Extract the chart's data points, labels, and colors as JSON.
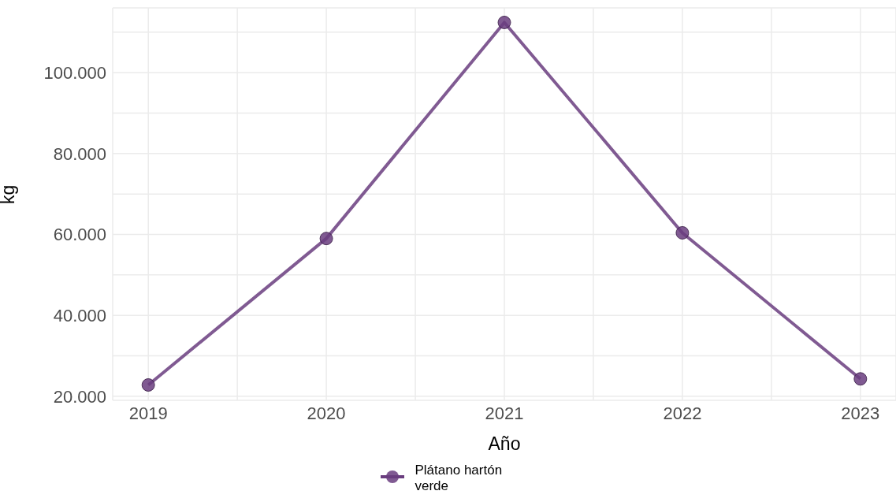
{
  "chart_data": {
    "type": "line",
    "xlabel": "Año",
    "ylabel": "kg",
    "x": [
      2019,
      2020,
      2021,
      2022,
      2023
    ],
    "series": [
      {
        "name": "Plátano hartón verde",
        "color": "#6a3d7f",
        "values": [
          22800,
          59000,
          112400,
          60400,
          24300
        ]
      }
    ],
    "xlim": [
      2018.8,
      2023.2
    ],
    "xticks": [
      2019,
      {
        "value": 2019.5,
        "label": null
      },
      2020,
      {
        "value": 2020.5,
        "label": null
      },
      2021,
      {
        "value": 2021.5,
        "label": null
      },
      2022,
      {
        "value": 2022.5,
        "label": null
      },
      2023
    ],
    "ylim": [
      19000,
      116000
    ],
    "yticks": [
      {
        "value": 20000,
        "label": "20.000"
      },
      {
        "value": 30000,
        "label": null
      },
      {
        "value": 40000,
        "label": "40.000"
      },
      {
        "value": 50000,
        "label": null
      },
      {
        "value": 60000,
        "label": "60.000"
      },
      {
        "value": 70000,
        "label": null
      },
      {
        "value": 80000,
        "label": "80.000"
      },
      {
        "value": 90000,
        "label": null
      },
      {
        "value": 100000,
        "label": "100.000"
      },
      {
        "value": 110000,
        "label": null
      }
    ],
    "grid": true,
    "legend": "bottom",
    "marker": "circle",
    "line_style": "solid"
  }
}
